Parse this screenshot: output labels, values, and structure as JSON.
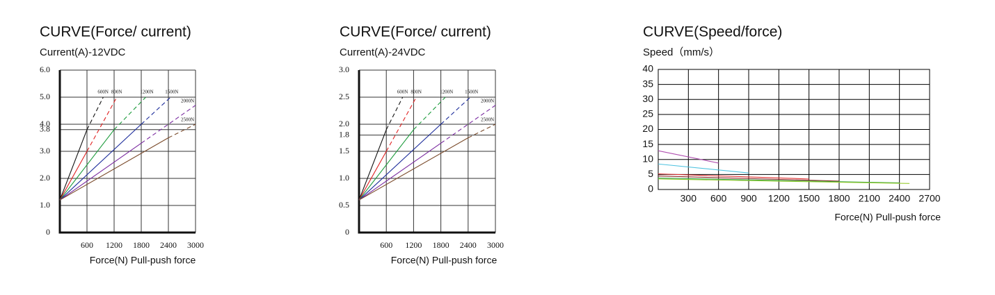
{
  "chart_data": [
    {
      "type": "line",
      "title": "CURVE(Force/ current)",
      "subtitle": "Current(A)-12VDC",
      "x_label": "Force(N) Pull-push force",
      "xlim": [
        0,
        3000
      ],
      "ylim": [
        0,
        6
      ],
      "xticks": [
        600,
        1200,
        1800,
        2400,
        3000
      ],
      "yticks": [
        0,
        {
          "value": 1,
          "label": "1.0"
        },
        {
          "value": 2,
          "label": "2.0"
        },
        {
          "value": 3,
          "label": "3.0"
        },
        3.8,
        {
          "value": 4,
          "label": "4.0"
        },
        {
          "value": 5,
          "label": "5.0"
        },
        {
          "value": 6,
          "label": "6.0"
        }
      ],
      "grid": true,
      "series": [
        {
          "name": "600N",
          "color": "#111111",
          "x": [
            0,
            600,
            960
          ],
          "values": [
            1.2,
            3.8,
            5.0
          ]
        },
        {
          "name": "800N",
          "color": "#e02020",
          "x": [
            0,
            600,
            1260
          ],
          "values": [
            1.2,
            3.0,
            5.0
          ]
        },
        {
          "name": "1200N",
          "color": "#1a9a3a",
          "x": [
            0,
            1200,
            1900
          ],
          "values": [
            1.2,
            3.8,
            5.0
          ]
        },
        {
          "name": "1500N",
          "color": "#1a2a9a",
          "x": [
            0,
            1800,
            2450
          ],
          "values": [
            1.2,
            4.0,
            5.0
          ]
        },
        {
          "name": "2000N",
          "color": "#7a2aa0",
          "x": [
            0,
            1800,
            3000
          ],
          "values": [
            1.2,
            3.3,
            4.7
          ]
        },
        {
          "name": "2500N",
          "color": "#7a4a2a",
          "x": [
            0,
            2400,
            3000
          ],
          "values": [
            1.2,
            3.5,
            4.0
          ]
        }
      ]
    },
    {
      "type": "line",
      "title": "CURVE(Force/ current)",
      "subtitle": "Current(A)-24VDC",
      "x_label": "Force(N) Pull-push force",
      "xlim": [
        0,
        3000
      ],
      "ylim": [
        0,
        3
      ],
      "xticks": [
        600,
        1200,
        1800,
        2400,
        3000
      ],
      "yticks": [
        0,
        0.5,
        {
          "value": 1,
          "label": "1.0"
        },
        1.5,
        1.8,
        {
          "value": 2,
          "label": "2.0"
        },
        2.5,
        {
          "value": 3,
          "label": "3.0"
        }
      ],
      "grid": true,
      "series": [
        {
          "name": "600N",
          "color": "#111111",
          "x": [
            0,
            600,
            960
          ],
          "values": [
            0.6,
            1.9,
            2.5
          ]
        },
        {
          "name": "800N",
          "color": "#e02020",
          "x": [
            0,
            600,
            1260
          ],
          "values": [
            0.6,
            1.5,
            2.5
          ]
        },
        {
          "name": "1200N",
          "color": "#1a9a3a",
          "x": [
            0,
            1200,
            1900
          ],
          "values": [
            0.6,
            1.9,
            2.5
          ]
        },
        {
          "name": "1500N",
          "color": "#1a2a9a",
          "x": [
            0,
            1800,
            2450
          ],
          "values": [
            0.6,
            2.0,
            2.5
          ]
        },
        {
          "name": "2000N",
          "color": "#7a2aa0",
          "x": [
            0,
            1800,
            3000
          ],
          "values": [
            0.6,
            1.65,
            2.35
          ]
        },
        {
          "name": "2500N",
          "color": "#7a4a2a",
          "x": [
            0,
            2400,
            3000
          ],
          "values": [
            0.6,
            1.75,
            2.0
          ]
        }
      ]
    },
    {
      "type": "line",
      "title": "CURVE(Speed/force)",
      "subtitle": "Speed（mm/s）",
      "x_label": "Force(N) Pull-push force",
      "xlim": [
        0,
        2700
      ],
      "ylim": [
        0,
        40
      ],
      "xticks": [
        300,
        600,
        900,
        1200,
        1500,
        1800,
        2100,
        2400,
        2700
      ],
      "yticks": [
        0,
        5,
        10,
        15,
        20,
        25,
        30,
        35,
        40
      ],
      "grid": true,
      "series": [
        {
          "color": "#b04fb0",
          "x": [
            0,
            600
          ],
          "values": [
            12.9,
            8.8
          ]
        },
        {
          "color": "#4fc3e0",
          "x": [
            0,
            900
          ],
          "values": [
            8.5,
            5.5
          ]
        },
        {
          "color": "#e03030",
          "x": [
            0,
            1500
          ],
          "values": [
            5.2,
            3.5
          ]
        },
        {
          "color": "#8b2a2a",
          "x": [
            0,
            1800
          ],
          "values": [
            4.5,
            2.8
          ]
        },
        {
          "color": "#2e9e3e",
          "x": [
            0,
            2400
          ],
          "values": [
            3.8,
            2.2
          ]
        },
        {
          "color": "#9acd32",
          "x": [
            0,
            2500
          ],
          "values": [
            3.5,
            2.0
          ]
        }
      ]
    }
  ]
}
